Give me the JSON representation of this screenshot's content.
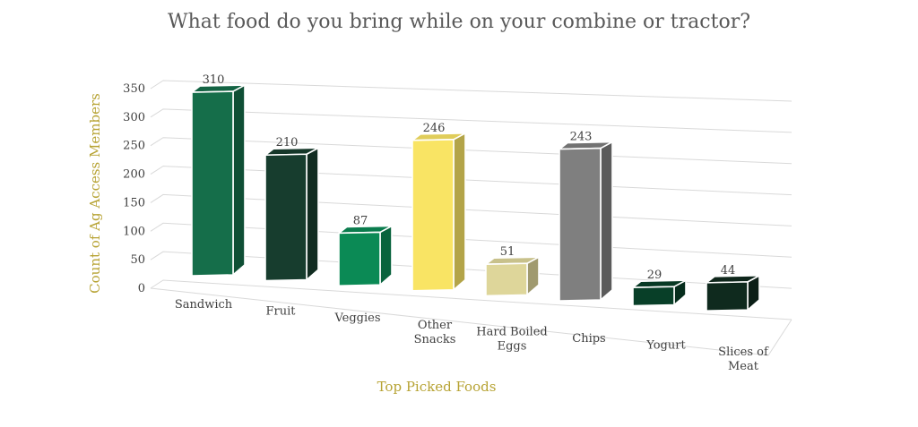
{
  "chart_data": {
    "type": "bar",
    "title": "What food do you bring while on your combine or tractor?",
    "xlabel": "Top Picked Foods",
    "ylabel": "Count of Ag Access Members",
    "ylim": [
      0,
      350
    ],
    "yticks": [
      0,
      50,
      100,
      150,
      200,
      250,
      300,
      350
    ],
    "grid": true,
    "style": "3d-perspective-columns",
    "categories": [
      [
        "Sandwich"
      ],
      [
        "Fruit"
      ],
      [
        "Veggies"
      ],
      [
        "Other",
        "Snacks"
      ],
      [
        "Hard Boiled",
        "Eggs"
      ],
      [
        "Chips"
      ],
      [
        "Yogurt"
      ],
      [
        "Slices of",
        "Meat"
      ]
    ],
    "values": [
      310,
      210,
      87,
      246,
      51,
      243,
      29,
      44
    ],
    "data_labels": [
      "310",
      "210",
      "87",
      "246",
      "51",
      "243",
      "29",
      "44"
    ],
    "colors": [
      "#156e4a",
      "#173d2e",
      "#0b8a55",
      "#f9e464",
      "#ded69a",
      "#7f7f7f",
      "#083f28",
      "#0f2a1e"
    ]
  }
}
